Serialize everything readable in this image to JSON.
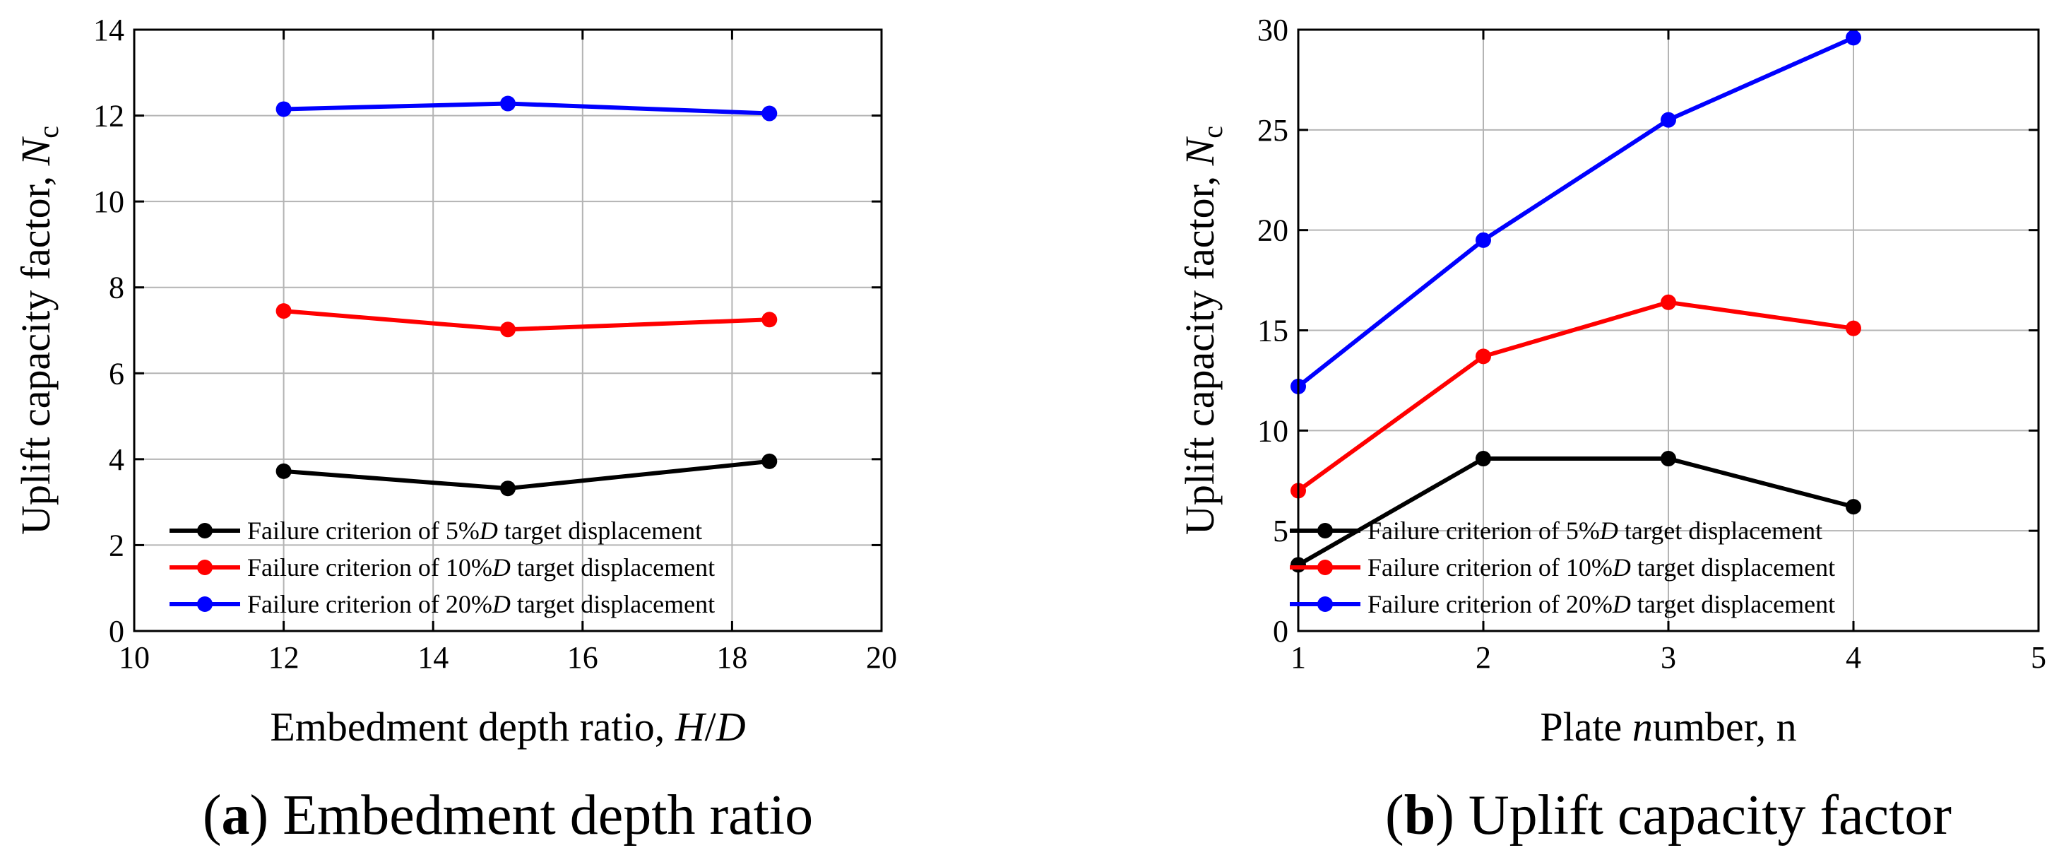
{
  "chart_data": [
    {
      "type": "line",
      "panel_letter": "a",
      "caption": "Embedment depth ratio",
      "xlabel": "Embedment depth ratio, H/D",
      "ylabel": "Uplift capacity factor, Nc",
      "xlim": [
        10,
        20
      ],
      "ylim": [
        0,
        14
      ],
      "xticks": [
        10,
        12,
        14,
        16,
        18,
        20
      ],
      "yticks": [
        0,
        2,
        4,
        6,
        8,
        10,
        12,
        14
      ],
      "grid": true,
      "legend_position": "bottom-right",
      "x": [
        12,
        15,
        18.5
      ],
      "series": [
        {
          "name": "Failure criterion of 5%D target displacement",
          "color": "#000000",
          "values": [
            3.72,
            3.32,
            3.95
          ]
        },
        {
          "name": "Failure criterion of 10%D target displacement",
          "color": "#ff0000",
          "values": [
            7.45,
            7.02,
            7.25
          ]
        },
        {
          "name": "Failure criterion of 20%D target displacement",
          "color": "#0000ff",
          "values": [
            12.15,
            12.28,
            12.05
          ]
        }
      ]
    },
    {
      "type": "line",
      "panel_letter": "b",
      "caption": "Uplift capacity factor",
      "xlabel": "Plate number, n",
      "ylabel": "Uplift capacity factor, Nc",
      "xlim": [
        1,
        5
      ],
      "ylim": [
        0,
        30
      ],
      "xticks": [
        1,
        2,
        3,
        4,
        5
      ],
      "yticks": [
        0,
        5,
        10,
        15,
        20,
        25,
        30
      ],
      "grid": true,
      "legend_position": "bottom-right",
      "x": [
        1,
        2,
        3,
        4
      ],
      "series": [
        {
          "name": "Failure criterion of 5%D target displacement",
          "color": "#000000",
          "values": [
            3.3,
            8.6,
            8.6,
            6.2
          ]
        },
        {
          "name": "Failure criterion of 10%D target displacement",
          "color": "#ff0000",
          "values": [
            7.0,
            13.7,
            16.4,
            15.1
          ]
        },
        {
          "name": "Failure criterion of 20%D target displacement",
          "color": "#0000ff",
          "values": [
            12.2,
            19.5,
            25.5,
            29.6
          ]
        }
      ]
    }
  ]
}
